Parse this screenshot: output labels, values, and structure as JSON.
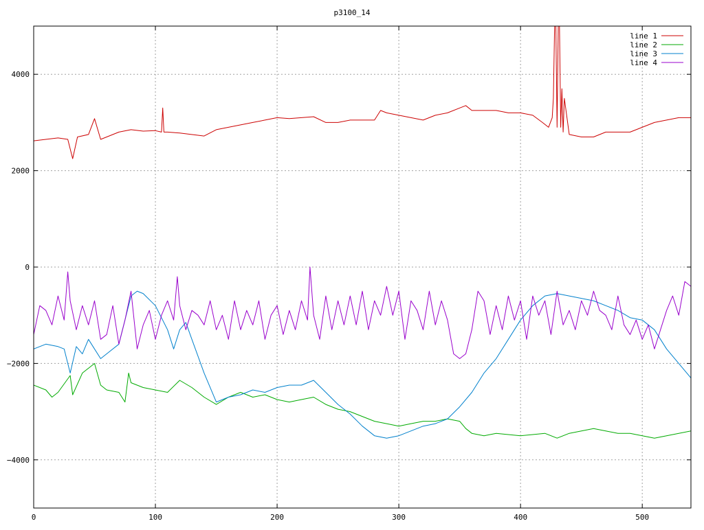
{
  "chart_data": {
    "type": "line",
    "title": "p3100_14",
    "xlabel": "",
    "ylabel": "",
    "xlim": [
      0,
      540
    ],
    "ylim": [
      -5000,
      5000
    ],
    "x_ticks": [
      0,
      100,
      200,
      300,
      400,
      500
    ],
    "y_ticks": [
      -4000,
      -2000,
      0,
      2000,
      4000
    ],
    "x_tick_labels": [
      "0",
      "100",
      "200",
      "300",
      "400",
      "500"
    ],
    "y_tick_labels": [
      "−4000",
      "−2000",
      "0",
      "2000",
      "4000"
    ],
    "grid": true,
    "legend_position": "top-right",
    "series": [
      {
        "name": "line 1",
        "color": "#cc0000",
        "x": [
          0,
          10,
          20,
          28,
          32,
          36,
          45,
          50,
          55,
          60,
          70,
          80,
          90,
          100,
          105,
          106,
          107,
          110,
          120,
          140,
          150,
          160,
          170,
          180,
          190,
          200,
          210,
          220,
          230,
          240,
          250,
          260,
          270,
          280,
          285,
          290,
          300,
          310,
          320,
          330,
          340,
          350,
          355,
          360,
          370,
          380,
          390,
          400,
          410,
          418,
          423,
          426,
          427,
          428,
          429,
          430,
          431,
          432,
          433,
          434,
          435,
          436,
          440,
          450,
          460,
          470,
          480,
          490,
          500,
          510,
          520,
          530,
          540
        ],
        "y": [
          2620,
          2650,
          2680,
          2650,
          2250,
          2700,
          2750,
          3080,
          2650,
          2700,
          2800,
          2850,
          2820,
          2830,
          2800,
          3300,
          2800,
          2800,
          2780,
          2720,
          2850,
          2900,
          2950,
          3000,
          3050,
          3100,
          3080,
          3100,
          3120,
          3000,
          3000,
          3050,
          3050,
          3050,
          3250,
          3200,
          3150,
          3100,
          3050,
          3150,
          3200,
          3300,
          3350,
          3250,
          3250,
          3250,
          3200,
          3200,
          3150,
          3000,
          2900,
          3100,
          3500,
          5000,
          5000,
          2900,
          5000,
          5000,
          2900,
          3700,
          2800,
          3500,
          2750,
          2700,
          2700,
          2800,
          2800,
          2800,
          2900,
          3000,
          3050,
          3100,
          3100
        ]
      },
      {
        "name": "line 2",
        "color": "#00aa00",
        "x": [
          0,
          10,
          15,
          20,
          30,
          32,
          40,
          50,
          55,
          60,
          70,
          75,
          78,
          80,
          90,
          100,
          110,
          120,
          130,
          140,
          150,
          160,
          170,
          180,
          190,
          200,
          210,
          220,
          230,
          240,
          250,
          260,
          270,
          280,
          290,
          300,
          310,
          320,
          330,
          340,
          350,
          355,
          360,
          370,
          380,
          400,
          420,
          430,
          440,
          450,
          460,
          470,
          480,
          490,
          500,
          510,
          520,
          530,
          540
        ],
        "y": [
          -2450,
          -2550,
          -2700,
          -2600,
          -2250,
          -2650,
          -2200,
          -2000,
          -2450,
          -2550,
          -2600,
          -2800,
          -2200,
          -2400,
          -2500,
          -2550,
          -2600,
          -2350,
          -2500,
          -2700,
          -2850,
          -2700,
          -2600,
          -2700,
          -2650,
          -2750,
          -2800,
          -2750,
          -2700,
          -2850,
          -2950,
          -3000,
          -3100,
          -3200,
          -3250,
          -3300,
          -3250,
          -3200,
          -3200,
          -3150,
          -3200,
          -3350,
          -3450,
          -3500,
          -3450,
          -3500,
          -3450,
          -3550,
          -3450,
          -3400,
          -3350,
          -3400,
          -3450,
          -3450,
          -3500,
          -3550,
          -3500,
          -3450,
          -3400
        ]
      },
      {
        "name": "line 3",
        "color": "#0080cc",
        "x": [
          0,
          10,
          20,
          25,
          30,
          35,
          40,
          45,
          50,
          55,
          60,
          70,
          80,
          85,
          90,
          100,
          110,
          115,
          120,
          125,
          130,
          140,
          150,
          160,
          170,
          180,
          190,
          200,
          210,
          220,
          230,
          240,
          250,
          260,
          270,
          280,
          290,
          300,
          310,
          320,
          330,
          340,
          350,
          360,
          370,
          380,
          390,
          400,
          410,
          420,
          430,
          440,
          450,
          460,
          470,
          480,
          490,
          500,
          510,
          520,
          530,
          540
        ],
        "y": [
          -1700,
          -1600,
          -1650,
          -1700,
          -2200,
          -1650,
          -1800,
          -1500,
          -1700,
          -1900,
          -1800,
          -1600,
          -600,
          -500,
          -550,
          -800,
          -1300,
          -1700,
          -1300,
          -1150,
          -1500,
          -2200,
          -2800,
          -2700,
          -2650,
          -2550,
          -2600,
          -2500,
          -2450,
          -2450,
          -2350,
          -2600,
          -2850,
          -3050,
          -3300,
          -3500,
          -3550,
          -3500,
          -3400,
          -3300,
          -3250,
          -3150,
          -2900,
          -2600,
          -2200,
          -1900,
          -1500,
          -1100,
          -800,
          -600,
          -550,
          -600,
          -650,
          -700,
          -800,
          -900,
          -1050,
          -1100,
          -1300,
          -1700,
          -2000,
          -2300
        ]
      },
      {
        "name": "line 4",
        "color": "#9900cc",
        "x": [
          0,
          5,
          10,
          15,
          20,
          25,
          28,
          30,
          35,
          40,
          45,
          50,
          55,
          60,
          65,
          70,
          75,
          80,
          85,
          90,
          95,
          100,
          105,
          110,
          115,
          118,
          120,
          125,
          130,
          135,
          140,
          145,
          150,
          155,
          160,
          165,
          170,
          175,
          180,
          185,
          190,
          195,
          200,
          205,
          210,
          215,
          220,
          225,
          227,
          230,
          235,
          240,
          245,
          250,
          255,
          260,
          265,
          270,
          275,
          280,
          285,
          290,
          295,
          300,
          305,
          310,
          315,
          320,
          325,
          330,
          335,
          340,
          345,
          350,
          355,
          360,
          365,
          370,
          375,
          380,
          385,
          390,
          395,
          400,
          405,
          410,
          415,
          420,
          425,
          430,
          435,
          440,
          445,
          450,
          455,
          460,
          465,
          470,
          475,
          480,
          485,
          490,
          495,
          500,
          505,
          510,
          515,
          520,
          525,
          530,
          535,
          540
        ],
        "y": [
          -1400,
          -800,
          -900,
          -1200,
          -600,
          -1100,
          -100,
          -700,
          -1300,
          -800,
          -1200,
          -700,
          -1500,
          -1400,
          -800,
          -1600,
          -1100,
          -500,
          -1700,
          -1200,
          -900,
          -1500,
          -1000,
          -700,
          -1100,
          -200,
          -800,
          -1300,
          -900,
          -1000,
          -1200,
          -700,
          -1300,
          -1000,
          -1500,
          -700,
          -1300,
          -900,
          -1200,
          -700,
          -1500,
          -1000,
          -800,
          -1400,
          -900,
          -1300,
          -700,
          -1100,
          0,
          -1000,
          -1500,
          -600,
          -1300,
          -700,
          -1200,
          -600,
          -1200,
          -500,
          -1300,
          -700,
          -1000,
          -400,
          -1000,
          -500,
          -1500,
          -700,
          -900,
          -1300,
          -500,
          -1200,
          -700,
          -1100,
          -1800,
          -1900,
          -1800,
          -1300,
          -500,
          -700,
          -1400,
          -800,
          -1300,
          -600,
          -1100,
          -700,
          -1500,
          -600,
          -1000,
          -700,
          -1400,
          -500,
          -1200,
          -900,
          -1300,
          -700,
          -1000,
          -500,
          -900,
          -1000,
          -1300,
          -600,
          -1200,
          -1400,
          -1100,
          -1500,
          -1200,
          -1700,
          -1300,
          -900,
          -600,
          -1000,
          -300,
          -400
        ]
      }
    ]
  }
}
